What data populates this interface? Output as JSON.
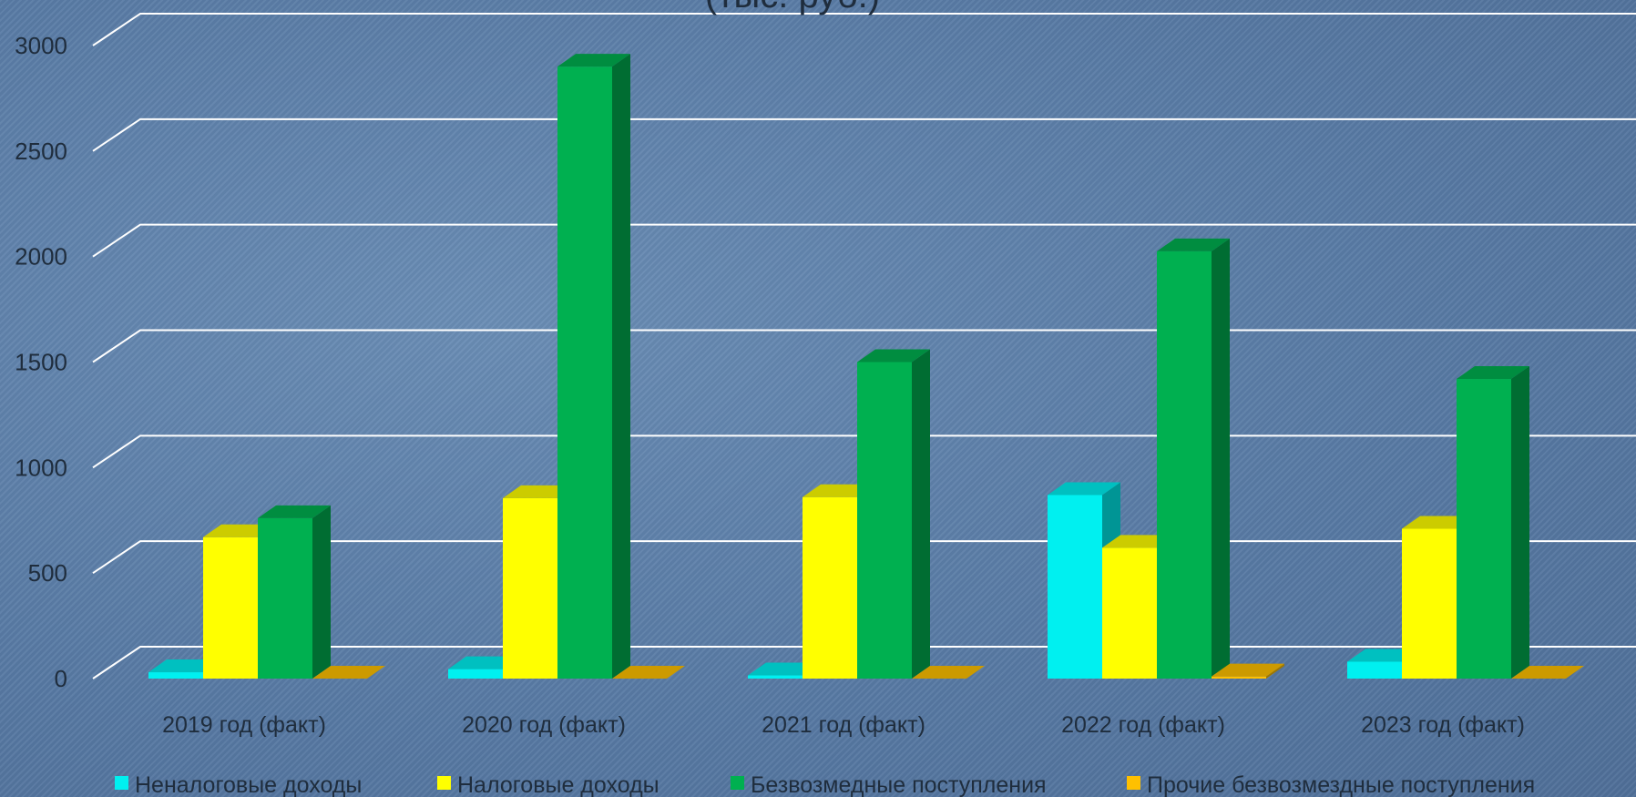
{
  "chart_data": {
    "type": "bar",
    "title": "(тыс. руб.)",
    "categories": [
      "2019 год (факт)",
      "2020 год (факт)",
      "2021 год (факт)",
      "2022 год (факт)",
      "2023 год (факт)"
    ],
    "series": [
      {
        "name": "Неналоговые доходы",
        "color": "#00f0f0",
        "values": [
          30,
          45,
          15,
          870,
          80
        ]
      },
      {
        "name": "Налоговые доходы",
        "color": "#ffff00",
        "values": [
          670,
          855,
          860,
          620,
          710
        ]
      },
      {
        "name": "Безвозмедные поступления",
        "color": "#00b050",
        "values": [
          760,
          2900,
          1500,
          2025,
          1420
        ]
      },
      {
        "name": "Прочие безвозмездные поступления",
        "color": "#ffc000",
        "values": [
          0,
          0,
          0,
          10,
          0
        ]
      }
    ],
    "yticks": [
      0,
      500,
      1000,
      1500,
      2000,
      2500,
      3000
    ],
    "ylim": [
      0,
      3000
    ],
    "grid": true,
    "legend": "bottom",
    "xlabel": "",
    "ylabel": ""
  }
}
